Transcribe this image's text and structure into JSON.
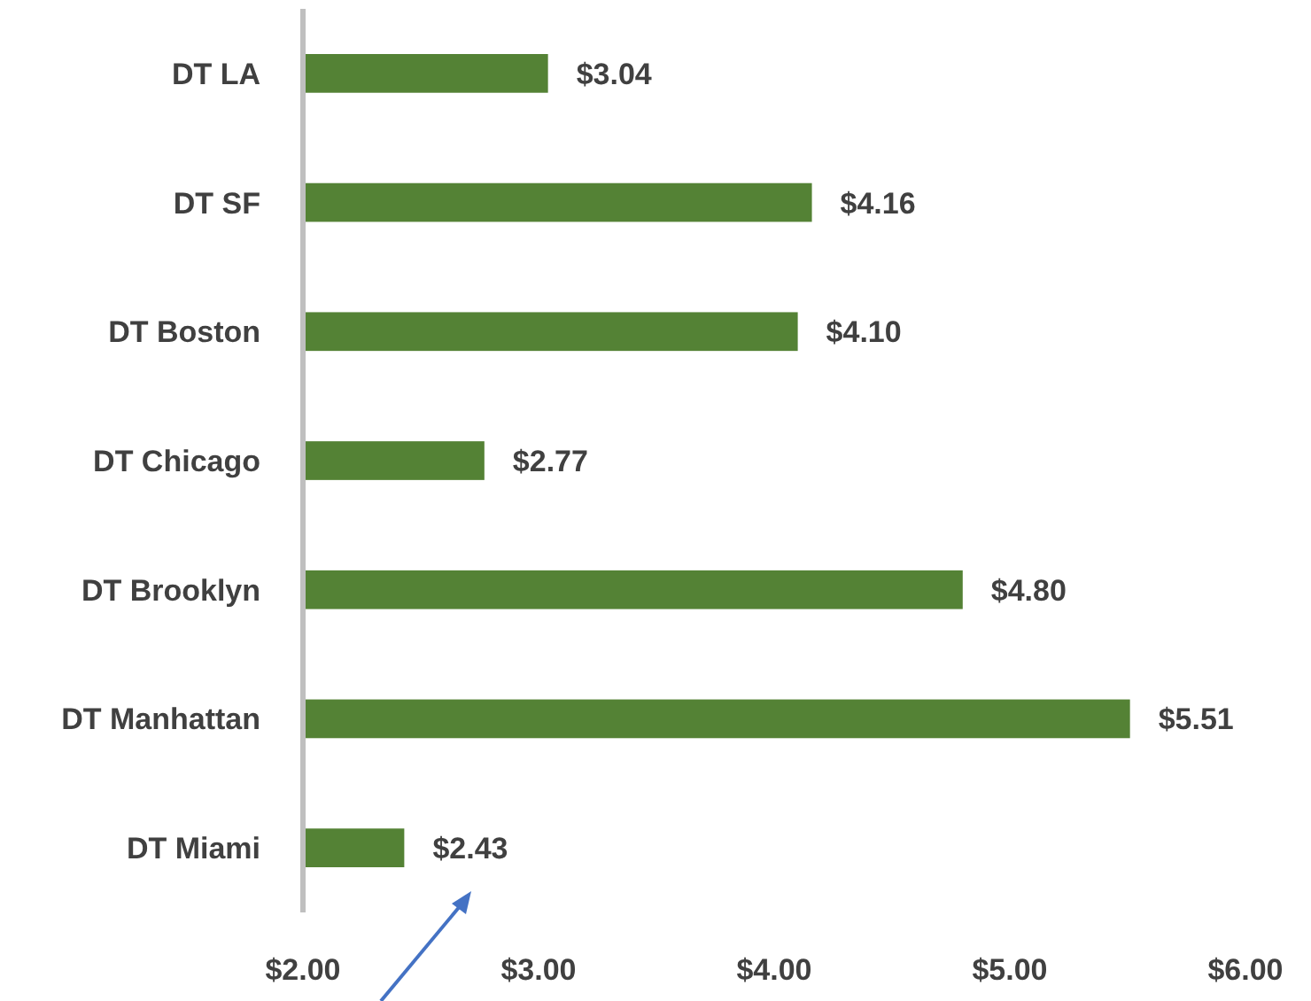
{
  "chart_data": {
    "type": "bar",
    "orientation": "horizontal",
    "categories": [
      "DT LA",
      "DT SF",
      "DT Boston",
      "DT Chicago",
      "DT Brooklyn",
      "DT Manhattan",
      "DT Miami"
    ],
    "values": [
      3.04,
      4.16,
      4.1,
      2.77,
      4.8,
      5.51,
      2.43
    ],
    "value_labels": [
      "$3.04",
      "$4.16",
      "$4.10",
      "$2.77",
      "$4.80",
      "$5.51",
      "$2.43"
    ],
    "color": "#548235",
    "xlim": [
      2,
      6
    ],
    "xticks": [
      {
        "value": 2,
        "label": "$2.00"
      },
      {
        "value": 3,
        "label": "$3.00"
      },
      {
        "value": 4,
        "label": "$4.00"
      },
      {
        "value": 5,
        "label": "$5.00"
      },
      {
        "value": 6,
        "label": "$6.00"
      }
    ],
    "grid": false
  }
}
